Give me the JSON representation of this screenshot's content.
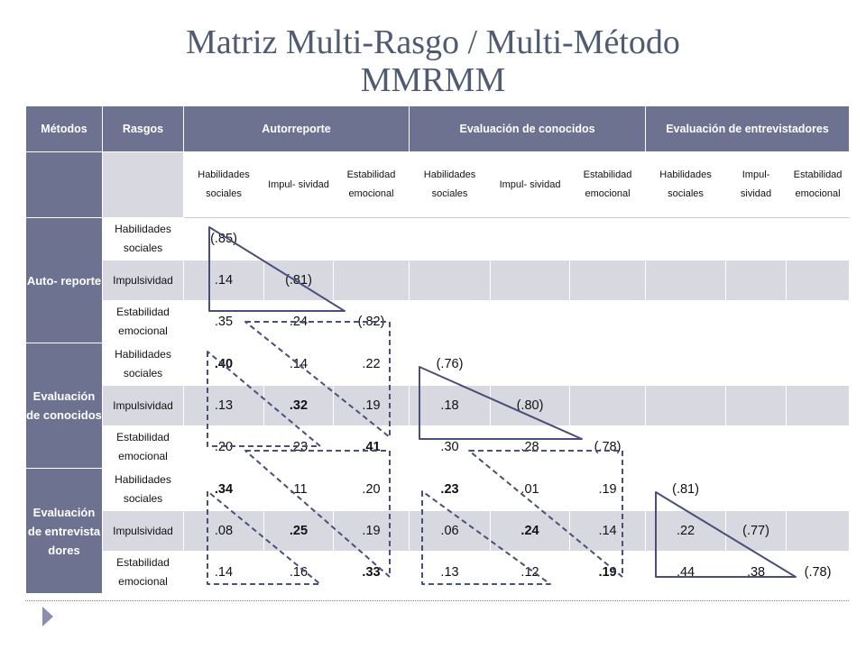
{
  "title": {
    "line1": "Matriz Multi-Rasgo / Multi-Método",
    "line2": "MMRMM"
  },
  "header": {
    "methods": "Métodos",
    "traits": "Rasgos",
    "m1": "Autorreporte",
    "m2": "Evaluación de conocidos",
    "m3": "Evaluación de entrevistadores"
  },
  "subheaders": [
    "Habilidades sociales",
    "Impul- sividad",
    "Estabilidad emocional",
    "Habilidades sociales",
    "Impul- sividad",
    "Estabilidad emocional",
    "Habilidades sociales",
    "Impul- sividad",
    "Estabilidad emocional"
  ],
  "groups": [
    {
      "method": "Auto- reporte",
      "rows": [
        {
          "trait": "Habilidades sociales",
          "cells": [
            "(.85)",
            "",
            "",
            "",
            "",
            "",
            "",
            "",
            ""
          ]
        },
        {
          "trait": "Impulsividad",
          "cells": [
            ".14",
            "(.81)",
            "",
            "",
            "",
            "",
            "",
            "",
            ""
          ]
        },
        {
          "trait": "Estabilidad emocional",
          "cells": [
            ".35",
            ".24",
            "(.82)",
            "",
            "",
            "",
            "",
            "",
            ""
          ]
        }
      ]
    },
    {
      "method": "Evaluación de conocidos",
      "rows": [
        {
          "trait": "Habilidades sociales",
          "cells": [
            ".40",
            ".14",
            ".22",
            "(.76)",
            "",
            "",
            "",
            "",
            ""
          ]
        },
        {
          "trait": "Impulsividad",
          "cells": [
            ".13",
            ".32",
            ".19",
            ".18",
            "(.80)",
            "",
            "",
            "",
            ""
          ]
        },
        {
          "trait": "Estabilidad emocional",
          "cells": [
            ".20",
            ".23",
            ".41",
            ".30",
            ".28",
            "(.78)",
            "",
            "",
            ""
          ]
        }
      ]
    },
    {
      "method": "Evaluación de entrevista dores",
      "rows": [
        {
          "trait": "Habilidades sociales",
          "cells": [
            ".34",
            ".11",
            ".20",
            ".23",
            ".01",
            ".19",
            "(.81)",
            "",
            ""
          ]
        },
        {
          "trait": "Impulsividad",
          "cells": [
            ".08",
            ".25",
            ".19",
            ".06",
            ".24",
            ".14",
            ".22",
            "(.77)",
            ""
          ]
        },
        {
          "trait": "Estabilidad emocional",
          "cells": [
            ".14",
            ".16",
            ".33",
            ".13",
            ".12",
            ".19",
            ".44",
            ".38",
            "(.78)"
          ]
        }
      ]
    }
  ],
  "bold_cells": [
    [
      3,
      0
    ],
    [
      4,
      1
    ],
    [
      5,
      2
    ],
    [
      6,
      0
    ],
    [
      7,
      1
    ],
    [
      8,
      2
    ],
    [
      6,
      3
    ],
    [
      7,
      4
    ],
    [
      8,
      5
    ]
  ],
  "colors": {
    "header": "#6d7290",
    "band": "#d7d8e0",
    "title": "#4f5a73",
    "triangle": "#4a4f7a"
  }
}
